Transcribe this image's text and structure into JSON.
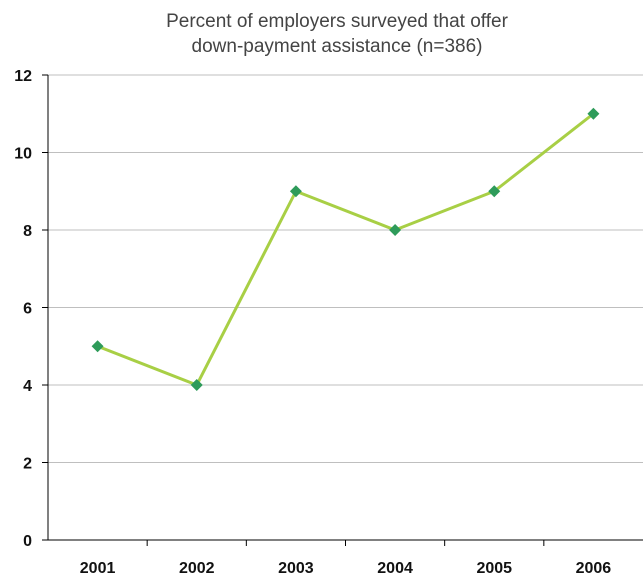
{
  "chart_data": {
    "type": "line",
    "title_lines": [
      "Percent of employers surveyed that offer",
      "down-payment assistance (n=386)"
    ],
    "categories": [
      "2001",
      "2002",
      "2003",
      "2004",
      "2005",
      "2006"
    ],
    "series": [
      {
        "values": [
          5,
          4,
          9,
          8,
          9,
          11
        ]
      }
    ],
    "ylim": [
      0,
      12
    ],
    "yticks": [
      "0",
      "2",
      "4",
      "6",
      "8",
      "10",
      "12"
    ],
    "grid": true,
    "colors": {
      "line": "#a8cf45",
      "marker": "#2e9b5a",
      "grid": "#bfbfbf",
      "axis": "#000000"
    }
  }
}
